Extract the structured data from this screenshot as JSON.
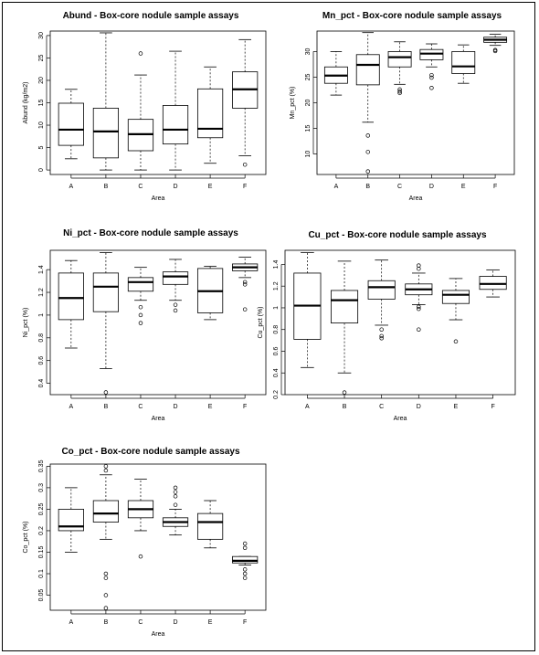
{
  "chart_data": [
    {
      "type": "boxplot",
      "title": "Abund - Box-core nodule sample assays",
      "xlabel": "Area",
      "ylabel": "Abund (kg/m2)",
      "ylim": [
        -1,
        31
      ],
      "yticks": [
        0,
        5,
        10,
        15,
        20,
        25,
        30
      ],
      "categories": [
        "A",
        "B",
        "C",
        "D",
        "E",
        "F"
      ],
      "boxes": [
        {
          "lw": 2.5,
          "q1": 5.5,
          "med": 9.0,
          "q3": 14.9,
          "uw": 18.0,
          "out": []
        },
        {
          "lw": 0.0,
          "q1": 2.7,
          "med": 8.6,
          "q3": 13.8,
          "uw": 30.6,
          "out": []
        },
        {
          "lw": 0.0,
          "q1": 4.3,
          "med": 8.0,
          "q3": 11.3,
          "uw": 21.2,
          "out": [
            26.0
          ]
        },
        {
          "lw": 0.0,
          "q1": 5.8,
          "med": 9.0,
          "q3": 14.4,
          "uw": 26.5,
          "out": []
        },
        {
          "lw": 1.5,
          "q1": 7.2,
          "med": 9.2,
          "q3": 18.1,
          "uw": 23.0,
          "out": []
        },
        {
          "lw": 3.2,
          "q1": 13.8,
          "med": 18.0,
          "q3": 21.9,
          "uw": 29.1,
          "out": [
            1.2
          ]
        }
      ]
    },
    {
      "type": "boxplot",
      "title": "Mn_pct - Box-core nodule sample assays",
      "xlabel": "Area",
      "ylabel": "Mn_pct (%)",
      "ylim": [
        6,
        34
      ],
      "yticks": [
        10,
        15,
        20,
        25,
        30
      ],
      "categories": [
        "A",
        "B",
        "C",
        "D",
        "E",
        "F"
      ],
      "boxes": [
        {
          "lw": 21.5,
          "q1": 23.8,
          "med": 25.3,
          "q3": 27.0,
          "uw": 30.0,
          "out": []
        },
        {
          "lw": 16.2,
          "q1": 23.5,
          "med": 27.4,
          "q3": 29.4,
          "uw": 33.7,
          "out": [
            13.6,
            10.4,
            6.6
          ]
        },
        {
          "lw": 23.6,
          "q1": 27.0,
          "med": 28.9,
          "q3": 30.0,
          "uw": 31.9,
          "out": [
            22.6,
            22.2,
            21.9
          ]
        },
        {
          "lw": 27.0,
          "q1": 28.4,
          "med": 29.6,
          "q3": 30.4,
          "uw": 31.5,
          "out": [
            25.4,
            24.9,
            22.9
          ]
        },
        {
          "lw": 23.8,
          "q1": 25.7,
          "med": 27.1,
          "q3": 30.0,
          "uw": 31.3,
          "out": []
        },
        {
          "lw": 31.2,
          "q1": 31.8,
          "med": 32.3,
          "q3": 32.8,
          "uw": 33.4,
          "out": [
            30.3,
            30.1
          ]
        }
      ]
    },
    {
      "type": "boxplot",
      "title": "Ni_pct - Box-core nodule sample assays",
      "xlabel": "Area",
      "ylabel": "Ni_pct (%)",
      "ylim": [
        0.3,
        1.57
      ],
      "yticks": [
        0.4,
        0.6,
        0.8,
        1.0,
        1.2,
        1.4
      ],
      "categories": [
        "A",
        "B",
        "C",
        "D",
        "E",
        "F"
      ],
      "boxes": [
        {
          "lw": 0.71,
          "q1": 0.96,
          "med": 1.15,
          "q3": 1.37,
          "uw": 1.48,
          "out": []
        },
        {
          "lw": 0.53,
          "q1": 1.03,
          "med": 1.25,
          "q3": 1.37,
          "uw": 1.55,
          "out": [
            0.32
          ]
        },
        {
          "lw": 1.13,
          "q1": 1.21,
          "med": 1.29,
          "q3": 1.33,
          "uw": 1.42,
          "out": [
            1.07,
            1.0,
            0.93
          ]
        },
        {
          "lw": 1.13,
          "q1": 1.27,
          "med": 1.34,
          "q3": 1.38,
          "uw": 1.49,
          "out": [
            1.09,
            1.04
          ]
        },
        {
          "lw": 0.96,
          "q1": 1.02,
          "med": 1.21,
          "q3": 1.41,
          "uw": 1.43,
          "out": []
        },
        {
          "lw": 1.33,
          "q1": 1.39,
          "med": 1.42,
          "q3": 1.45,
          "uw": 1.51,
          "out": [
            1.29,
            1.27,
            1.05
          ]
        }
      ]
    },
    {
      "type": "boxplot",
      "title": "Cu_pct - Box-core nodule sample assays",
      "xlabel": "Area",
      "ylabel": "Cu_pct (%)",
      "ylim": [
        0.2,
        1.53
      ],
      "yticks": [
        0.2,
        0.4,
        0.6,
        0.8,
        1.0,
        1.2,
        1.4
      ],
      "categories": [
        "A",
        "B",
        "C",
        "D",
        "E",
        "F"
      ],
      "boxes": [
        {
          "lw": 0.45,
          "q1": 0.71,
          "med": 1.02,
          "q3": 1.32,
          "uw": 1.51,
          "out": []
        },
        {
          "lw": 0.4,
          "q1": 0.86,
          "med": 1.07,
          "q3": 1.16,
          "uw": 1.43,
          "out": [
            0.22
          ]
        },
        {
          "lw": 0.84,
          "q1": 1.08,
          "med": 1.19,
          "q3": 1.25,
          "uw": 1.44,
          "out": [
            0.8,
            0.74,
            0.72
          ]
        },
        {
          "lw": 1.03,
          "q1": 1.12,
          "med": 1.17,
          "q3": 1.22,
          "uw": 1.32,
          "out": [
            1.39,
            1.36,
            1.01,
            0.99,
            0.8
          ]
        },
        {
          "lw": 0.89,
          "q1": 1.04,
          "med": 1.12,
          "q3": 1.16,
          "uw": 1.27,
          "out": [
            0.69
          ]
        },
        {
          "lw": 1.1,
          "q1": 1.17,
          "med": 1.22,
          "q3": 1.29,
          "uw": 1.35,
          "out": []
        }
      ]
    },
    {
      "type": "boxplot",
      "title": "Co_pct - Box-core nodule sample assays",
      "xlabel": "Area",
      "ylabel": "Co_pct (%)",
      "ylim": [
        0.015,
        0.355
      ],
      "yticks": [
        0.05,
        0.1,
        0.15,
        0.2,
        0.25,
        0.3,
        0.35
      ],
      "categories": [
        "A",
        "B",
        "C",
        "D",
        "E",
        "F"
      ],
      "boxes": [
        {
          "lw": 0.15,
          "q1": 0.2,
          "med": 0.21,
          "q3": 0.25,
          "uw": 0.3,
          "out": []
        },
        {
          "lw": 0.18,
          "q1": 0.22,
          "med": 0.24,
          "q3": 0.27,
          "uw": 0.33,
          "out": [
            0.35,
            0.34,
            0.1,
            0.09,
            0.05,
            0.02
          ]
        },
        {
          "lw": 0.2,
          "q1": 0.23,
          "med": 0.25,
          "q3": 0.27,
          "uw": 0.32,
          "out": [
            0.14
          ]
        },
        {
          "lw": 0.19,
          "q1": 0.21,
          "med": 0.22,
          "q3": 0.23,
          "uw": 0.25,
          "out": [
            0.3,
            0.29,
            0.28,
            0.26
          ]
        },
        {
          "lw": 0.16,
          "q1": 0.18,
          "med": 0.22,
          "q3": 0.24,
          "uw": 0.27,
          "out": []
        },
        {
          "lw": 0.12,
          "q1": 0.125,
          "med": 0.13,
          "q3": 0.14,
          "uw": 0.14,
          "out": [
            0.17,
            0.16,
            0.11,
            0.1,
            0.09
          ]
        }
      ]
    }
  ]
}
